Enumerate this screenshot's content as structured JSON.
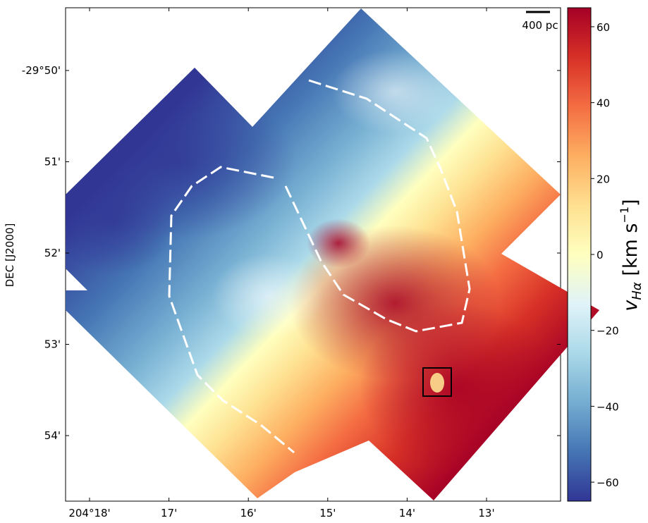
{
  "chart_data": {
    "type": "heatmap",
    "title": "",
    "xlabel": "",
    "ylabel": "DEC [J2000]",
    "x_ticks": [
      {
        "label": "204°18'",
        "ra_min": 18
      },
      {
        "label": "17'",
        "ra_min": 17
      },
      {
        "label": "16'",
        "ra_min": 16
      },
      {
        "label": "15'",
        "ra_min": 15
      },
      {
        "label": "14'",
        "ra_min": 14
      },
      {
        "label": "13'",
        "ra_min": 13
      }
    ],
    "y_ticks": [
      {
        "label": "-29°50'",
        "dec_min": 50
      },
      {
        "label": "51'",
        "dec_min": 51
      },
      {
        "label": "52'",
        "dec_min": 52
      },
      {
        "label": "53'",
        "dec_min": 53
      },
      {
        "label": "54'",
        "dec_min": 54
      }
    ],
    "colorbar": {
      "label": "v_Hα [km s⁻¹]",
      "label_main": "v",
      "label_sub": "Hα",
      "label_unit": " [km s",
      "label_exp": "−1",
      "label_close": "]",
      "range": [
        -65,
        65
      ],
      "colormap": "RdYlBu_r",
      "ticks": [
        {
          "label": "60",
          "value": 60
        },
        {
          "label": "40",
          "value": 40
        },
        {
          "label": "20",
          "value": 20
        },
        {
          "label": "0",
          "value": 0
        },
        {
          "label": "−20",
          "value": -20
        },
        {
          "label": "−40",
          "value": -40
        },
        {
          "label": "−60",
          "value": -60
        }
      ]
    },
    "scale_bar": {
      "label": "400 pc"
    },
    "overlays": [
      {
        "kind": "dashed-contour",
        "color": "#ffffff",
        "name": "inner-ring"
      },
      {
        "kind": "dashed-contour",
        "color": "#ffffff",
        "name": "outer-arc"
      },
      {
        "kind": "box",
        "color": "#000000",
        "name": "highlight-box"
      }
    ],
    "velocity_trend": "blue-shifted toward upper-left (north-east), red-shifted toward lower-right (south-west)"
  }
}
